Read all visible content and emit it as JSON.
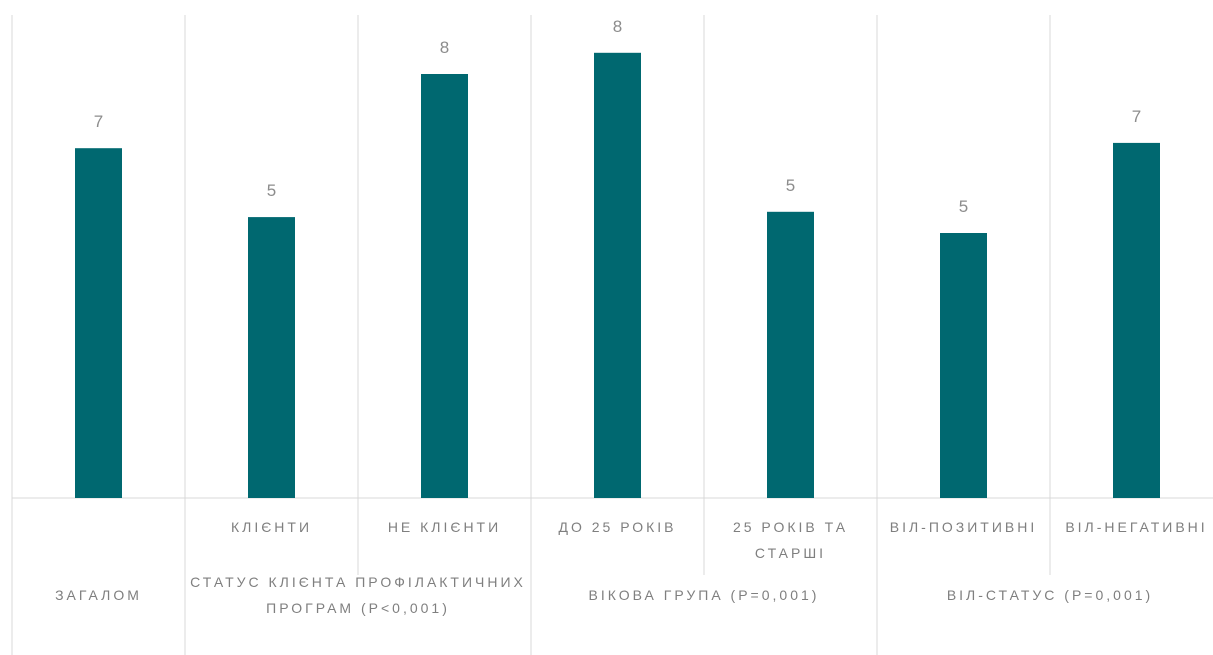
{
  "chart_data": {
    "type": "bar",
    "categories": [
      null,
      "КЛІЄНТИ",
      "НЕ КЛІЄНТИ",
      "ДО 25 РОКІВ",
      "25 РОКІВ ТА СТАРШІ",
      "ВІЛ-ПОЗИТИВНІ",
      "ВІЛ-НЕГАТИВНІ"
    ],
    "groups": [
      {
        "label": "ЗАГАЛОМ",
        "span": 1
      },
      {
        "label": "СТАТУС КЛІЄНТА ПРОФІЛАКТИЧНИХ ПРОГРАМ (P<0,001)",
        "span": 2
      },
      {
        "label": "ВІКОВА ГРУПА (P=0,001)",
        "span": 2
      },
      {
        "label": "ВІЛ-СТАТУС (P=0,001)",
        "span": 2
      }
    ],
    "values": [
      6.6,
      5.3,
      8.0,
      8.4,
      5.4,
      5.0,
      6.7
    ],
    "value_labels": [
      "7",
      "5",
      "8",
      "8",
      "5",
      "5",
      "7"
    ],
    "color": "#006870",
    "ylim": [
      0,
      9
    ]
  }
}
